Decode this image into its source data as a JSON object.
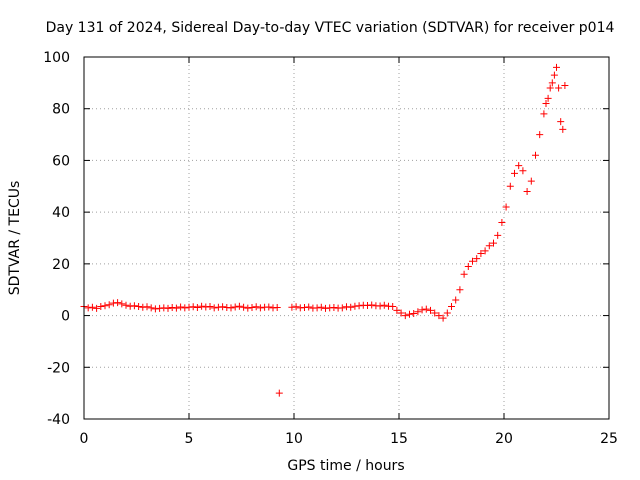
{
  "chart_data": {
    "type": "scatter",
    "title": "Day 131 of 2024, Sidereal Day-to-day VTEC variation (SDTVAR) for receiver p014",
    "xlabel": "GPS time / hours",
    "ylabel": "SDTVAR / TECUs",
    "xlim": [
      0,
      25
    ],
    "ylim": [
      -40,
      100
    ],
    "xticks": [
      0,
      5,
      10,
      15,
      20,
      25
    ],
    "yticks": [
      -40,
      -20,
      0,
      20,
      40,
      60,
      80,
      100
    ],
    "xtick_labels": [
      "0",
      "5",
      "10",
      "15",
      "20",
      "25"
    ],
    "ytick_labels": [
      "-40",
      "-20",
      "0",
      "20",
      "40",
      "60",
      "80",
      "100"
    ],
    "grid": true,
    "marker": "plus",
    "color": "#ff0000",
    "series": [
      {
        "name": "SDTVAR",
        "x": [
          0.0,
          0.2,
          0.4,
          0.6,
          0.8,
          1.0,
          1.2,
          1.4,
          1.6,
          1.8,
          2.0,
          2.2,
          2.4,
          2.6,
          2.8,
          3.0,
          3.2,
          3.4,
          3.6,
          3.8,
          4.0,
          4.2,
          4.4,
          4.6,
          4.8,
          5.0,
          5.2,
          5.4,
          5.6,
          5.8,
          6.0,
          6.2,
          6.4,
          6.6,
          6.8,
          7.0,
          7.2,
          7.4,
          7.6,
          7.8,
          8.0,
          8.2,
          8.4,
          8.6,
          8.8,
          9.0,
          9.2,
          9.3,
          9.9,
          10.1,
          10.3,
          10.5,
          10.7,
          10.9,
          11.1,
          11.3,
          11.5,
          11.7,
          11.9,
          12.1,
          12.3,
          12.5,
          12.7,
          12.9,
          13.1,
          13.3,
          13.5,
          13.7,
          13.9,
          14.1,
          14.3,
          14.5,
          14.7,
          14.9,
          15.1,
          15.3,
          15.5,
          15.7,
          15.9,
          16.1,
          16.3,
          16.5,
          16.7,
          16.9,
          17.1,
          17.3,
          17.5,
          17.7,
          17.9,
          18.1,
          18.3,
          18.5,
          18.7,
          18.9,
          19.1,
          19.3,
          19.5,
          19.7,
          19.9,
          20.1,
          20.3,
          20.5,
          20.7,
          20.9,
          21.1,
          21.3,
          21.5,
          21.7,
          21.9,
          22.0,
          22.1,
          22.2,
          22.3,
          22.4,
          22.5,
          22.6,
          22.7,
          22.8,
          22.9
        ],
        "y": [
          3.5,
          3.0,
          3.2,
          2.8,
          3.5,
          3.8,
          4.2,
          4.8,
          5.0,
          4.5,
          4.0,
          3.6,
          3.8,
          3.5,
          3.2,
          3.4,
          3.0,
          2.6,
          2.8,
          3.0,
          2.8,
          3.1,
          2.9,
          3.3,
          3.0,
          3.2,
          3.4,
          3.1,
          3.6,
          3.3,
          3.5,
          3.0,
          3.2,
          3.4,
          3.1,
          3.0,
          3.3,
          3.6,
          3.2,
          2.9,
          3.1,
          3.4,
          3.0,
          3.2,
          3.3,
          3.0,
          3.1,
          -30.0,
          3.2,
          3.4,
          3.0,
          3.1,
          3.3,
          2.9,
          3.0,
          3.2,
          2.8,
          3.0,
          3.1,
          2.9,
          3.0,
          3.4,
          3.2,
          3.6,
          3.8,
          4.0,
          3.9,
          4.1,
          3.8,
          3.7,
          4.0,
          3.6,
          3.5,
          2.0,
          1.0,
          0.0,
          0.5,
          0.8,
          1.5,
          2.2,
          2.5,
          2.0,
          1.0,
          0.0,
          -1.0,
          1.0,
          3.5,
          6.0,
          10.0,
          16.0,
          19.0,
          21.0,
          22.0,
          24.0,
          25.0,
          27.0,
          28.0,
          31.0,
          36.0,
          42.0,
          50.0,
          55.0,
          58.0,
          56.0,
          48.0,
          52.0,
          62.0,
          70.0,
          78.0,
          82.0,
          84.0,
          88.0,
          90.0,
          93.0,
          96.0,
          88.0,
          75.0,
          72.0,
          89.0
        ]
      }
    ]
  }
}
